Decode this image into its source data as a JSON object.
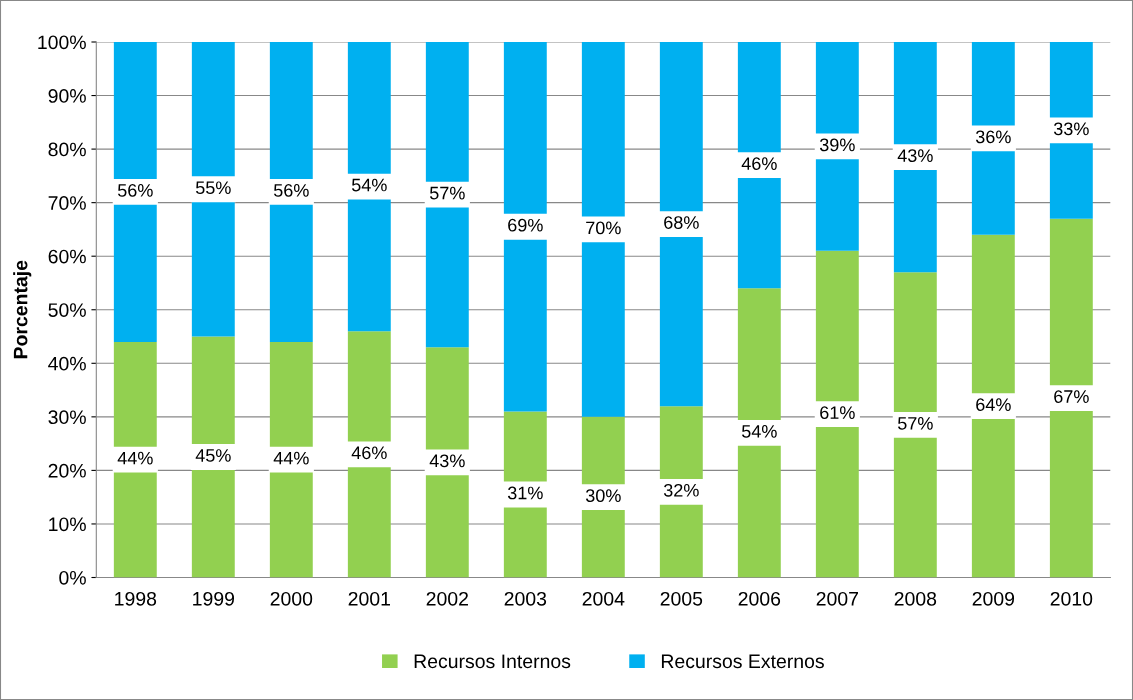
{
  "chart_data": {
    "type": "bar",
    "stacked": true,
    "ylabel": "Porcentaje",
    "categories": [
      "1998",
      "1999",
      "2000",
      "2001",
      "2002",
      "2003",
      "2004",
      "2005",
      "2006",
      "2007",
      "2008",
      "2009",
      "2010"
    ],
    "series": [
      {
        "name": "Recursos Internos",
        "color": "#92d050",
        "values": [
          44,
          45,
          44,
          46,
          43,
          31,
          30,
          32,
          54,
          61,
          57,
          64,
          67
        ],
        "value_labels": [
          "44%",
          "45%",
          "44%",
          "46%",
          "43%",
          "31%",
          "30%",
          "32%",
          "54%",
          "61%",
          "57%",
          "64%",
          "67%"
        ]
      },
      {
        "name": "Recursos Externos",
        "color": "#00b0f0",
        "values": [
          56,
          55,
          56,
          54,
          57,
          69,
          70,
          68,
          46,
          39,
          43,
          36,
          33
        ],
        "value_labels": [
          "56%",
          "55%",
          "56%",
          "54%",
          "57%",
          "69%",
          "70%",
          "68%",
          "46%",
          "39%",
          "43%",
          "36%",
          "33%"
        ]
      }
    ],
    "ylim": [
      0,
      100
    ],
    "yticks": [
      {
        "value": 0,
        "label": "0%"
      },
      {
        "value": 10,
        "label": "10%"
      },
      {
        "value": 20,
        "label": "20%"
      },
      {
        "value": 30,
        "label": "30%"
      },
      {
        "value": 40,
        "label": "40%"
      },
      {
        "value": 50,
        "label": "50%"
      },
      {
        "value": 60,
        "label": "60%"
      },
      {
        "value": 70,
        "label": "70%"
      },
      {
        "value": 80,
        "label": "80%"
      },
      {
        "value": 90,
        "label": "90%"
      },
      {
        "value": 100,
        "label": "100%"
      }
    ],
    "grid": "y",
    "legend": "bottom"
  }
}
